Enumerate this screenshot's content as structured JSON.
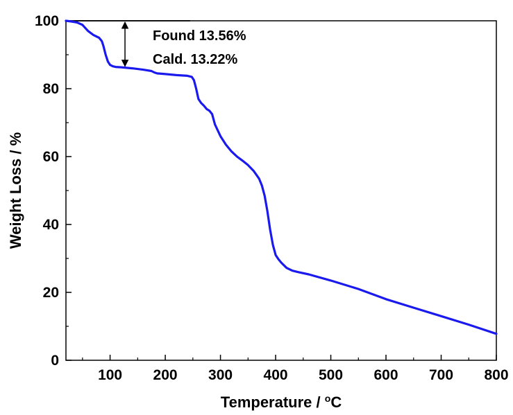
{
  "chart_data": {
    "type": "line",
    "xlabel_text": "Temperature / ",
    "xlabel_sup": "o",
    "xlabel_unit": "C",
    "ylabel": "Weight Loss / %",
    "xlim": [
      20,
      800
    ],
    "ylim": [
      0,
      100
    ],
    "x_ticks": [
      100,
      200,
      300,
      400,
      500,
      600,
      700,
      800
    ],
    "y_ticks": [
      0,
      20,
      40,
      60,
      80,
      100
    ],
    "grid": false,
    "series_color": "#1a1aee",
    "series": [
      {
        "x": [
          20,
          30,
          40,
          50,
          60,
          70,
          80,
          85,
          88,
          92,
          96,
          100,
          105,
          110,
          120,
          140,
          160,
          175,
          180,
          185,
          200,
          220,
          240,
          248,
          252,
          256,
          260,
          265,
          270,
          275,
          280,
          285,
          290,
          300,
          310,
          320,
          330,
          340,
          350,
          360,
          370,
          375,
          380,
          385,
          390,
          395,
          400,
          405,
          410,
          420,
          430,
          440,
          460,
          500,
          550,
          600,
          650,
          700,
          750,
          800
        ],
        "y": [
          100,
          99.8,
          99.5,
          98.8,
          97.0,
          95.8,
          95.0,
          94.0,
          92.5,
          90.0,
          88.0,
          87.0,
          86.6,
          86.4,
          86.3,
          86.0,
          85.6,
          85.2,
          84.8,
          84.5,
          84.3,
          84.0,
          83.8,
          83.5,
          82.5,
          80.0,
          77.0,
          75.8,
          75.0,
          74.0,
          73.5,
          72.5,
          69.5,
          66.0,
          63.5,
          61.5,
          60.0,
          58.8,
          57.5,
          55.8,
          53.5,
          51.5,
          48.5,
          44.0,
          38.5,
          34.0,
          31.0,
          29.8,
          28.8,
          27.2,
          26.4,
          26.0,
          25.3,
          23.5,
          21.0,
          18.0,
          15.5,
          13.0,
          10.5,
          7.8
        ]
      }
    ],
    "annotations": {
      "found": "Found 13.56%",
      "cald": "Cald. 13.22%",
      "baseline_x": [
        20,
        245
      ],
      "baseline_y": 100,
      "arrow_x": 127,
      "arrow_y": [
        100,
        86.4
      ]
    }
  }
}
